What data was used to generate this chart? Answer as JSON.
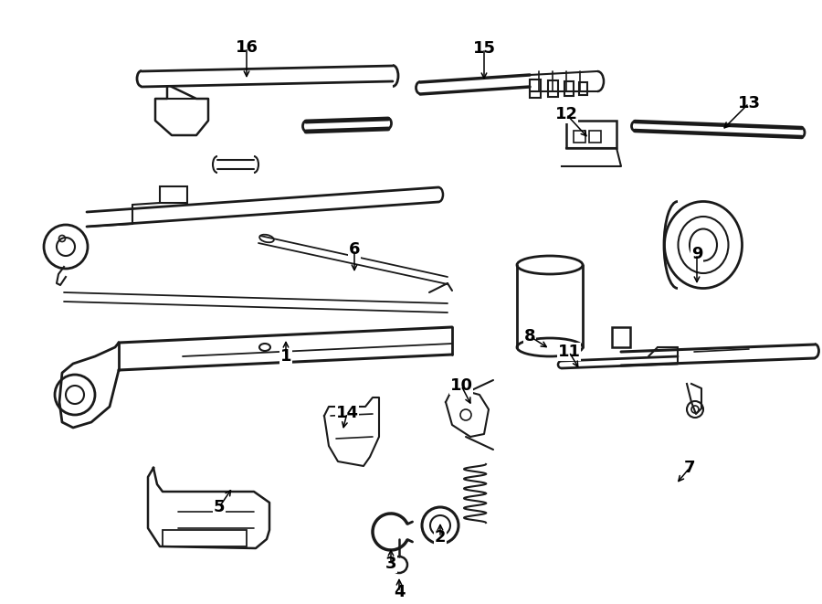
{
  "bg_color": "#ffffff",
  "line_color": "#1a1a1a",
  "label_color": "#000000",
  "figsize": [
    9.0,
    6.61
  ],
  "dpi": 100
}
